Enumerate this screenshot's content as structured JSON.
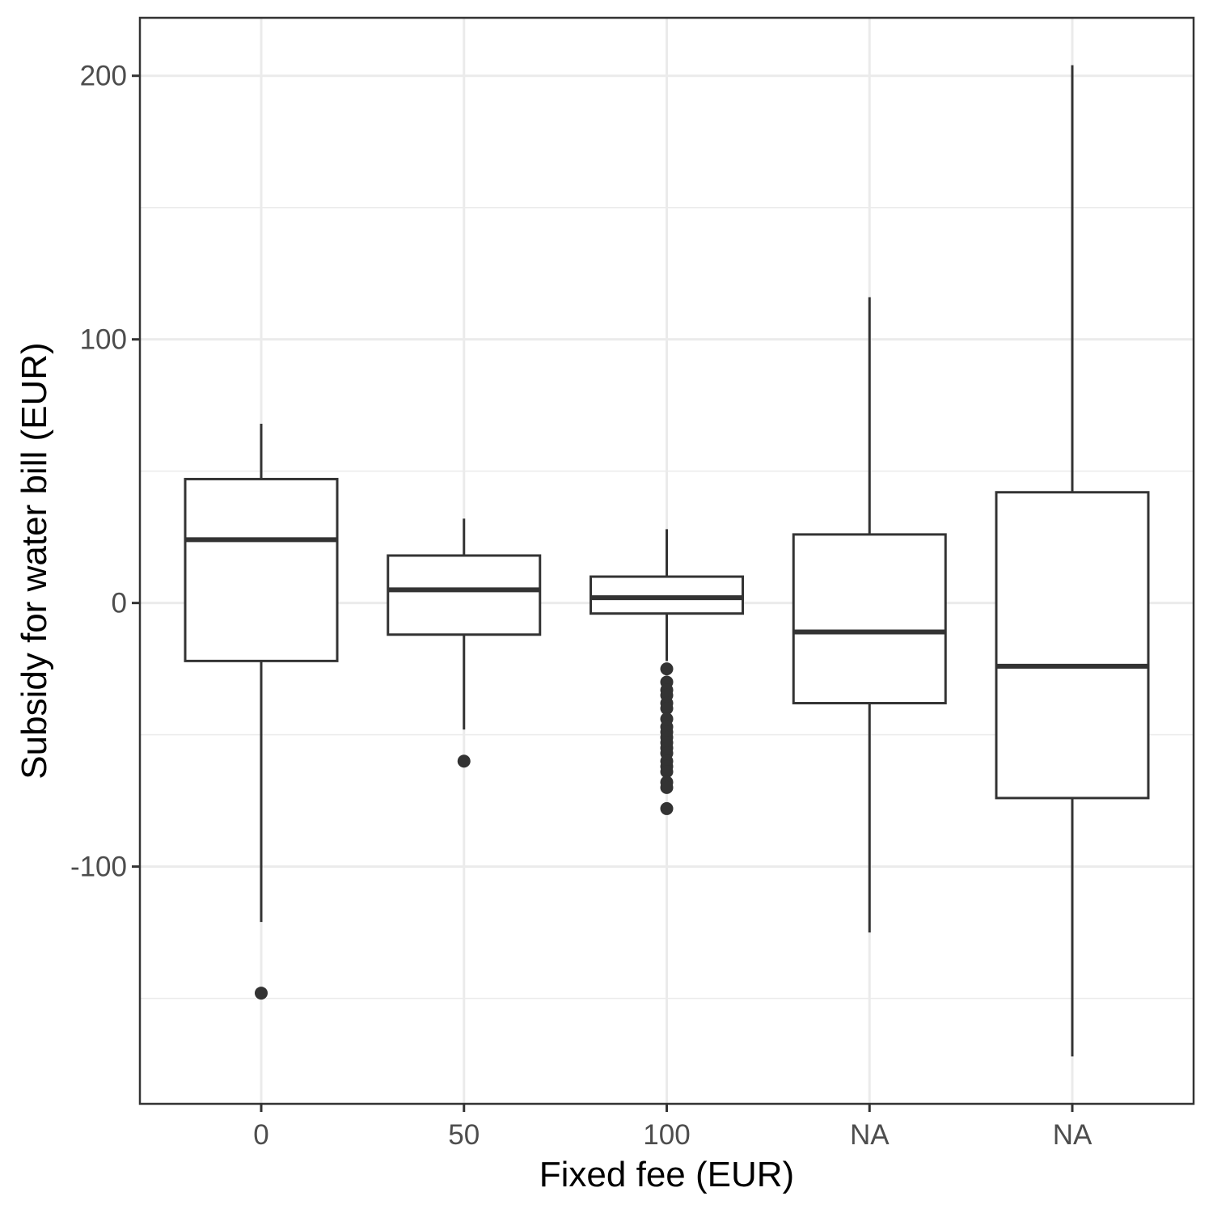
{
  "chart_data": {
    "type": "boxplot",
    "xlabel": "Fixed fee (EUR)",
    "ylabel": "Subsidy for water bill (EUR)",
    "ylim": [
      -190,
      222
    ],
    "y_ticks": [
      -100,
      0,
      100,
      200
    ],
    "y_minor_ticks": [
      -150,
      -50,
      50,
      150
    ],
    "grid": true,
    "categories": [
      "0",
      "50",
      "100",
      "NA",
      "NA"
    ],
    "boxes": [
      {
        "category": "0",
        "whisker_low": -121,
        "q1": -22,
        "median": 24,
        "q3": 47,
        "whisker_high": 68,
        "outliers": [
          -148
        ]
      },
      {
        "category": "50",
        "whisker_low": -48,
        "q1": -12,
        "median": 5,
        "q3": 18,
        "whisker_high": 32,
        "outliers": [
          -60
        ]
      },
      {
        "category": "100",
        "whisker_low": -22,
        "q1": -4,
        "median": 2,
        "q3": 10,
        "whisker_high": 28,
        "outliers": [
          -25,
          -30,
          -33,
          -35,
          -38,
          -40,
          -44,
          -47,
          -49,
          -51,
          -53,
          -55,
          -57,
          -60,
          -62,
          -64,
          -68,
          -70,
          -78
        ]
      },
      {
        "category": "NA",
        "whisker_low": -125,
        "q1": -38,
        "median": -11,
        "q3": 26,
        "whisker_high": 116,
        "outliers": []
      },
      {
        "category": "NA",
        "whisker_low": -172,
        "q1": -74,
        "median": -24,
        "q3": 42,
        "whisker_high": 204,
        "outliers": []
      }
    ]
  }
}
